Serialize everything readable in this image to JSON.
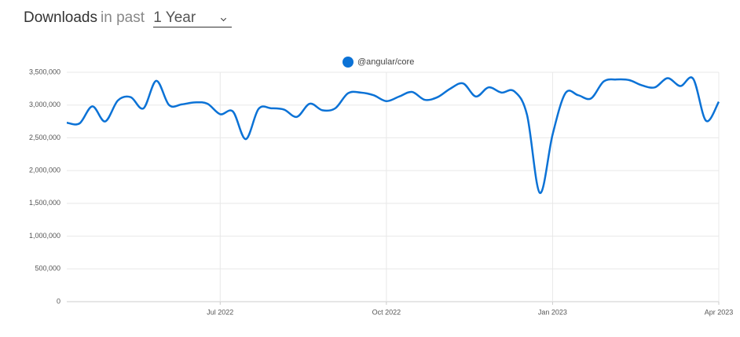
{
  "header": {
    "title": "Downloads",
    "subtitle": "in past",
    "period": "1 Year"
  },
  "chart_data": {
    "type": "line",
    "categories": [
      null,
      null,
      null,
      null,
      null,
      null,
      null,
      null,
      null,
      null,
      null,
      null,
      "Jul 2022",
      null,
      null,
      null,
      null,
      null,
      null,
      null,
      null,
      null,
      null,
      null,
      null,
      "Oct 2022",
      null,
      null,
      null,
      null,
      null,
      null,
      null,
      null,
      null,
      null,
      null,
      null,
      "Jan 2023",
      null,
      null,
      null,
      null,
      null,
      null,
      null,
      null,
      null,
      null,
      null,
      null,
      "Apr 2023"
    ],
    "series": [
      {
        "name": "@angular/core",
        "color": "#0b72d6",
        "values": [
          2730000,
          2720000,
          2980000,
          2750000,
          3070000,
          3120000,
          2950000,
          3370000,
          3000000,
          3010000,
          3040000,
          3020000,
          2860000,
          2900000,
          2480000,
          2940000,
          2950000,
          2930000,
          2820000,
          3020000,
          2920000,
          2950000,
          3180000,
          3190000,
          3150000,
          3060000,
          3130000,
          3200000,
          3080000,
          3120000,
          3250000,
          3330000,
          3130000,
          3270000,
          3190000,
          3210000,
          2850000,
          1660000,
          2550000,
          3180000,
          3150000,
          3100000,
          3360000,
          3390000,
          3380000,
          3300000,
          3270000,
          3410000,
          3290000,
          3400000,
          2760000,
          3050000
        ]
      }
    ],
    "ylim": [
      0,
      3500000
    ],
    "yticks": [
      0,
      {
        "value": 500000,
        "label": "500,000"
      },
      {
        "value": 1000000,
        "label": "1,000,000"
      },
      {
        "value": 1500000,
        "label": "1,500,000"
      },
      {
        "value": 2000000,
        "label": "2,000,000"
      },
      {
        "value": 2500000,
        "label": "2,500,000"
      },
      {
        "value": 3000000,
        "label": "3,000,000"
      },
      {
        "value": 3500000,
        "label": "3,500,000"
      }
    ],
    "grid": true
  }
}
